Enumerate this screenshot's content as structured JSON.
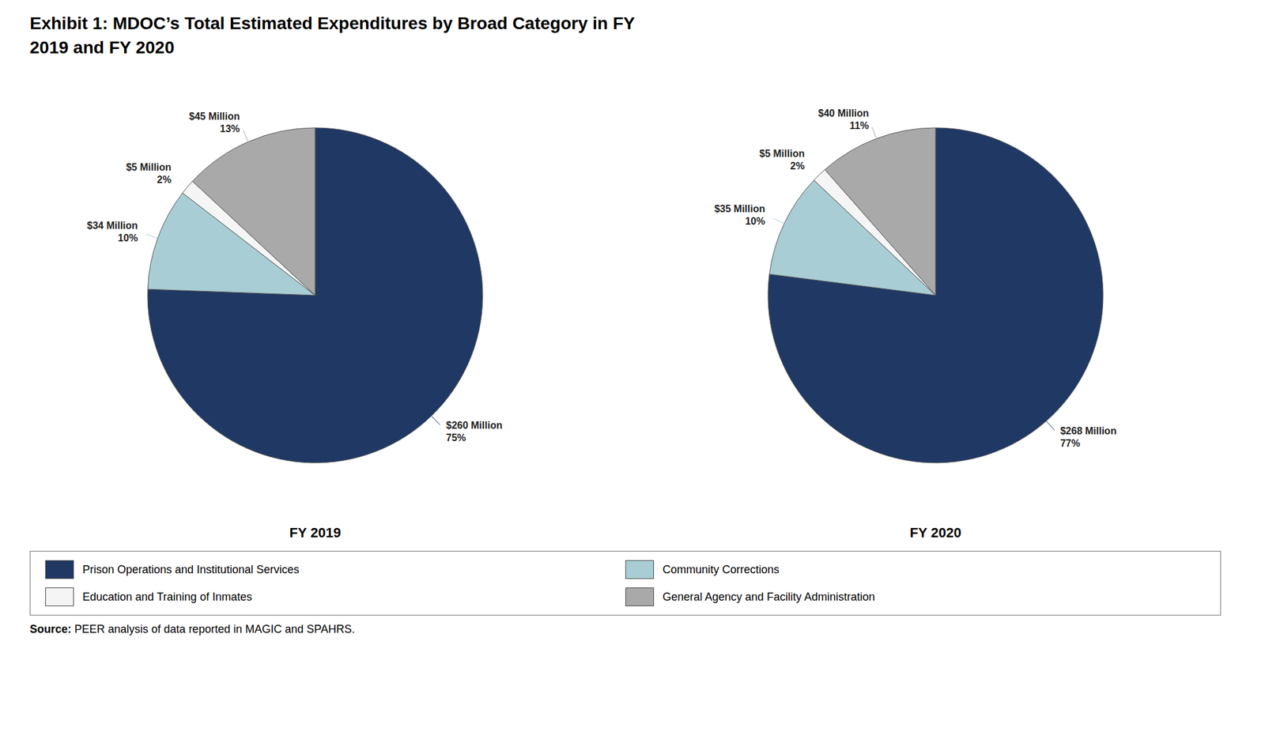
{
  "title": "Exhibit 1: MDOC’s Total Estimated Expenditures by Broad Category in FY\n2019 and FY 2020",
  "annotations": [
    "Source: PEER analysis of data reported in MAGIC and SPAHRS."
  ],
  "chart_data": [
    {
      "type": "pie",
      "title": "FY 2019",
      "categories": [
        "Prison Operations and Institutional Services",
        "Community Corrections",
        "Education and Training of Inmates",
        "General Agency and Facility Administration"
      ],
      "values": [
        260,
        34,
        5,
        45
      ],
      "value_labels": [
        "$260 Million\n75%",
        "$34 Million\n10%",
        "$5 Million\n2%",
        "$45 Million\n13%"
      ],
      "colors": [
        "#1f3864",
        "#a8cdd4",
        "#f5f5f5",
        "#a9a9a9"
      ],
      "data_labels": true,
      "legend": "bottom"
    },
    {
      "type": "pie",
      "title": "FY 2020",
      "categories": [
        "Prison Operations and Institutional Services",
        "Community Corrections",
        "Education and Training of Inmates",
        "General Agency and Facility Administration"
      ],
      "values": [
        268,
        35,
        5,
        40
      ],
      "value_labels": [
        "$268 Million\n77%",
        "$35 Million\n10%",
        "$5 Million\n2%",
        "$40 Million\n11%"
      ],
      "colors": [
        "#1f3864",
        "#a8cdd4",
        "#f5f5f5",
        "#a9a9a9"
      ],
      "data_labels": true,
      "legend": "bottom"
    }
  ]
}
